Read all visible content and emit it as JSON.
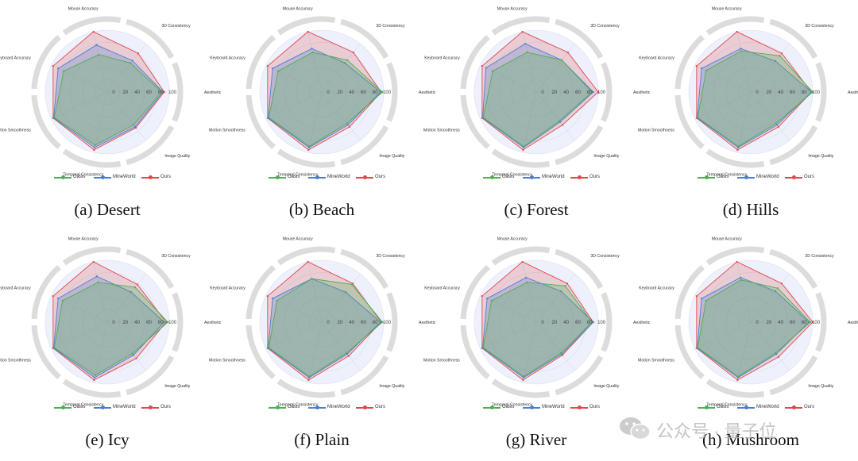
{
  "chart_data": {
    "type": "radar",
    "axes": [
      "Aesthetic",
      "3D Consistency",
      "Mouse Accuracy",
      "Keyboard Accuracy",
      "Motion Smoothness",
      "Temporal Consistency",
      "Image Quality"
    ],
    "radial_ticks": [
      "0",
      "20",
      "40",
      "60",
      "80",
      "100"
    ],
    "rlim": [
      0,
      100
    ],
    "legend": [
      "Oasis",
      "MineWorld",
      "Ours"
    ],
    "colors": {
      "Oasis": "#4caf50",
      "MineWorld": "#4a7fd0",
      "Ours": "#e0474c"
    },
    "panels": [
      {
        "caption": "(a) Desert",
        "series": [
          {
            "name": "Oasis",
            "values": [
              88,
              60,
              62,
              78,
              95,
              88,
              68
            ]
          },
          {
            "name": "MineWorld",
            "values": [
              90,
              65,
              78,
              88,
              96,
              92,
              72
            ]
          },
          {
            "name": "Ours",
            "values": [
              92,
              80,
              100,
              97,
              97,
              96,
              74
            ]
          }
        ]
      },
      {
        "caption": "(b) Beach",
        "series": [
          {
            "name": "Oasis",
            "values": [
              98,
              66,
              66,
              78,
              95,
              90,
              65
            ]
          },
          {
            "name": "MineWorld",
            "values": [
              95,
              60,
              72,
              88,
              96,
              92,
              68
            ]
          },
          {
            "name": "Ours",
            "values": [
              96,
              82,
              100,
              97,
              97,
              96,
              72
            ]
          }
        ]
      },
      {
        "caption": "(c) Forest",
        "series": [
          {
            "name": "Oasis",
            "values": [
              90,
              66,
              66,
              78,
              95,
              90,
              60
            ]
          },
          {
            "name": "MineWorld",
            "values": [
              92,
              66,
              80,
              90,
              96,
              92,
              62
            ]
          },
          {
            "name": "Ours",
            "values": [
              100,
              82,
              100,
              97,
              97,
              96,
              68
            ]
          }
        ]
      },
      {
        "caption": "(d) Hills",
        "series": [
          {
            "name": "Oasis",
            "values": [
              100,
              75,
              68,
              80,
              95,
              90,
              65
            ]
          },
          {
            "name": "MineWorld",
            "values": [
              98,
              64,
              72,
              88,
              96,
              92,
              68
            ]
          },
          {
            "name": "Ours",
            "values": [
              98,
              80,
              100,
              97,
              97,
              96,
              72
            ]
          }
        ]
      },
      {
        "caption": "(e) Icy",
        "series": [
          {
            "name": "Oasis",
            "values": [
              98,
              72,
              66,
              80,
              95,
              88,
              65
            ]
          },
          {
            "name": "MineWorld",
            "values": [
              92,
              62,
              76,
              88,
              96,
              92,
              68
            ]
          },
          {
            "name": "Ours",
            "values": [
              95,
              78,
              100,
              97,
              97,
              96,
              75
            ]
          }
        ]
      },
      {
        "caption": "(f) Plain",
        "series": [
          {
            "name": "Oasis",
            "values": [
              98,
              78,
              72,
              80,
              95,
              90,
              64
            ]
          },
          {
            "name": "MineWorld",
            "values": [
              95,
              62,
              72,
              88,
              96,
              92,
              66
            ]
          },
          {
            "name": "Ours",
            "values": [
              96,
              80,
              100,
              97,
              97,
              96,
              70
            ]
          }
        ]
      },
      {
        "caption": "(g) River",
        "series": [
          {
            "name": "Oasis",
            "values": [
              90,
              75,
              66,
              80,
              95,
              90,
              64
            ]
          },
          {
            "name": "MineWorld",
            "values": [
              92,
              64,
              74,
              88,
              96,
              92,
              66
            ]
          },
          {
            "name": "Ours",
            "values": [
              92,
              80,
              100,
              97,
              97,
              96,
              68
            ]
          }
        ]
      },
      {
        "caption": "(h) Mushroom",
        "series": [
          {
            "name": "Oasis",
            "values": [
              96,
              70,
              70,
              80,
              95,
              90,
              64
            ]
          },
          {
            "name": "MineWorld",
            "values": [
              94,
              64,
              74,
              88,
              96,
              92,
              66
            ]
          },
          {
            "name": "Ours",
            "values": [
              100,
              80,
              100,
              97,
              97,
              96,
              72
            ]
          }
        ]
      }
    ]
  },
  "watermark": {
    "text": "公众号 · 量子位",
    "icon": "wechat-icon"
  }
}
